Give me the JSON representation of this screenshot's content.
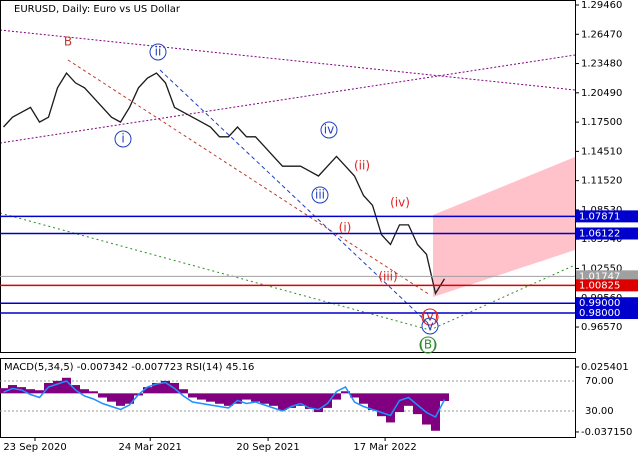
{
  "chart_data": [
    {
      "type": "line",
      "title": "EURUSD, Daily:  Euro vs US Dollar",
      "x": [
        -7,
        -5,
        -3,
        -1,
        1,
        3,
        5,
        7,
        9,
        11,
        13,
        15,
        17,
        19,
        21,
        23,
        25,
        27,
        29,
        31,
        33,
        35,
        37,
        39,
        41,
        43,
        45,
        47,
        49,
        51,
        53,
        55,
        57,
        59,
        61,
        63,
        65,
        67,
        69,
        71,
        73,
        75,
        77,
        79,
        81,
        83,
        85,
        87,
        89,
        91
      ],
      "series": [
        {
          "name": "EURUSD",
          "color": "#1a1a1a",
          "values": [
            1.17,
            1.18,
            1.185,
            1.19,
            1.175,
            1.18,
            1.21,
            1.225,
            1.215,
            1.21,
            1.2,
            1.19,
            1.18,
            1.175,
            1.19,
            1.21,
            1.22,
            1.225,
            1.215,
            1.19,
            1.185,
            1.18,
            1.175,
            1.17,
            1.16,
            1.16,
            1.17,
            1.16,
            1.16,
            1.15,
            1.14,
            1.13,
            1.13,
            1.13,
            1.125,
            1.12,
            1.13,
            1.14,
            1.13,
            1.12,
            1.1,
            1.09,
            1.06,
            1.05,
            1.07,
            1.07,
            1.05,
            1.04,
            1.0,
            1.015
          ]
        }
      ],
      "xlim": [
        -7.78,
        120
      ],
      "xticks": [
        {
          "value": 0,
          "label": "23 Sep 2020"
        },
        {
          "value": 25.6,
          "label": "24 Mar 2021"
        },
        {
          "value": 51.8,
          "label": "20 Sep 2021"
        },
        {
          "value": 77.8,
          "label": "17 Mar 2022"
        }
      ],
      "ylim": [
        0.9402,
        1.2997
      ],
      "yticks": [
        {
          "value": 1.2946,
          "label": "1.29460"
        },
        {
          "value": 1.2647,
          "label": "1.26470"
        },
        {
          "value": 1.2348,
          "label": "1.23480"
        },
        {
          "value": 1.2049,
          "label": "1.20490"
        },
        {
          "value": 1.175,
          "label": "1.17500"
        },
        {
          "value": 1.1451,
          "label": "1.14510"
        },
        {
          "value": 1.1152,
          "label": "1.11520"
        },
        {
          "value": 1.0853,
          "label": "1.08530"
        },
        {
          "value": 1.0554,
          "label": "1.05540"
        },
        {
          "value": 1.0255,
          "label": "1.02550"
        },
        {
          "value": 0.9956,
          "label": "0.99560"
        },
        {
          "value": 0.9657,
          "label": "0.96570"
        }
      ],
      "levels": [
        {
          "value": 1.07871,
          "label": "1.07871",
          "color": "#0000cc"
        },
        {
          "value": 1.06122,
          "label": "1.06122",
          "color": "#0000cc"
        },
        {
          "value": 1.01747,
          "label": "1.01747",
          "color": "#a0a0a0"
        },
        {
          "value": 1.00825,
          "label": "1.00825",
          "color": "#dd0000"
        },
        {
          "value": 0.99,
          "label": "0.99000",
          "color": "#0000cc"
        },
        {
          "value": 0.98,
          "label": "0.98000",
          "color": "#0000cc"
        }
      ],
      "annotations": [
        {
          "text": "B",
          "color": "#c0392b"
        },
        {
          "text": "ii",
          "color": "#1f3fbf"
        },
        {
          "text": "i",
          "color": "#1f3fbf"
        },
        {
          "text": "iv",
          "color": "#1f3fbf"
        },
        {
          "text": "iii",
          "color": "#1f3fbf"
        },
        {
          "text": "(ii)",
          "color": "#dd2222"
        },
        {
          "text": "(i)",
          "color": "#dd2222"
        },
        {
          "text": "(iv)",
          "color": "#dd2222"
        },
        {
          "text": "(iii)",
          "color": "#dd2222"
        },
        {
          "text": "(v)",
          "color": "#dd2222"
        },
        {
          "text": "v",
          "color": "#1f3fbf"
        },
        {
          "text": "(B)",
          "color": "#2e8b2e"
        }
      ]
    },
    {
      "type": "indicator",
      "title": "MACD(5,34,5) -0.007342 -0.007723 RSI(14) 45.16",
      "x": [
        -7,
        -5,
        -3,
        -1,
        1,
        3,
        5,
        7,
        9,
        11,
        13,
        15,
        17,
        19,
        21,
        23,
        25,
        27,
        29,
        31,
        33,
        35,
        37,
        39,
        41,
        43,
        45,
        47,
        49,
        51,
        53,
        55,
        57,
        59,
        61,
        63,
        65,
        67,
        69,
        71,
        73,
        75,
        77,
        79,
        81,
        83,
        85,
        87,
        89,
        91
      ],
      "xlim": [
        -7.78,
        120
      ],
      "series": [
        {
          "name": "MACD",
          "color": "#800080",
          "values": [
            0.005,
            0.008,
            0.006,
            0.004,
            0.003,
            0.01,
            0.012,
            0.015,
            0.008,
            0.004,
            0.002,
            -0.004,
            -0.008,
            -0.012,
            -0.01,
            -0.002,
            0.006,
            0.01,
            0.012,
            0.01,
            0.004,
            -0.004,
            -0.006,
            -0.008,
            -0.01,
            -0.012,
            -0.01,
            -0.006,
            -0.008,
            -0.01,
            -0.012,
            -0.016,
            -0.014,
            -0.012,
            -0.015,
            -0.018,
            -0.014,
            -0.006,
            0.002,
            -0.004,
            -0.01,
            -0.016,
            -0.022,
            -0.028,
            -0.018,
            -0.012,
            -0.02,
            -0.03,
            -0.036,
            -0.007342
          ]
        },
        {
          "name": "RSI",
          "color": "#1e90ff",
          "axis": "y2",
          "values": [
            55,
            60,
            58,
            52,
            48,
            62,
            66,
            70,
            58,
            50,
            46,
            40,
            36,
            32,
            38,
            52,
            62,
            66,
            68,
            60,
            50,
            42,
            40,
            38,
            36,
            34,
            44,
            40,
            42,
            38,
            34,
            30,
            36,
            40,
            34,
            32,
            40,
            56,
            62,
            42,
            36,
            32,
            28,
            24,
            44,
            48,
            38,
            28,
            22,
            45.16
          ]
        }
      ],
      "ylim": [
        -0.042,
        0.0321
      ],
      "yticks": [
        {
          "value": 0.025401,
          "label": "0.025401"
        },
        {
          "value": -0.03715,
          "label": "-0.037150"
        }
      ],
      "y2lim": [
        -4.67,
        98
      ],
      "y2ticks": [
        {
          "value": 70,
          "label": "70.00"
        },
        {
          "value": 30,
          "label": "30.00"
        }
      ]
    }
  ]
}
